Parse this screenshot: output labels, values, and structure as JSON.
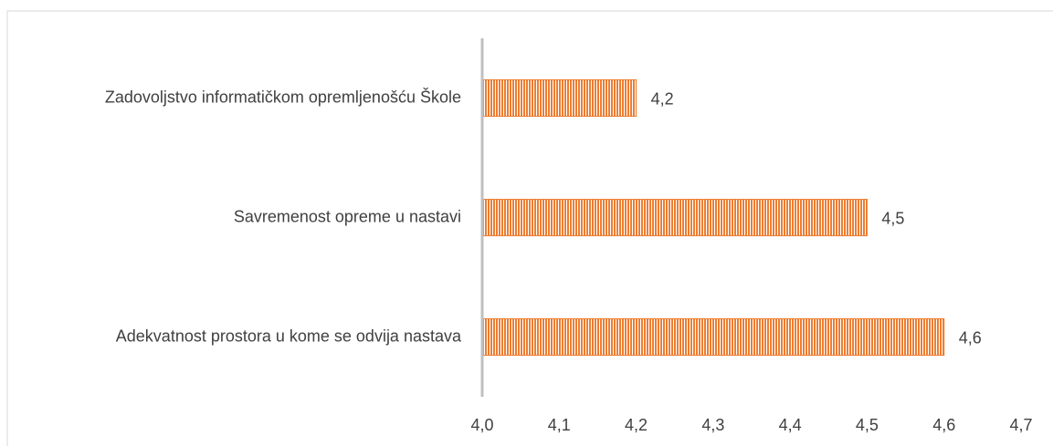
{
  "chart_data": {
    "type": "bar",
    "orientation": "horizontal",
    "categories": [
      "Zadovoljstvo informatičkom opremljenošću Škole",
      "Savremenost opreme u nastavi",
      "Adekvatnost prostora u kome se odvija nastava"
    ],
    "values": [
      4.2,
      4.5,
      4.6
    ],
    "value_labels": [
      "4,2",
      "4,5",
      "4,6"
    ],
    "color": "#ed7d31",
    "xlim": [
      4.0,
      4.7
    ],
    "xticks": [
      {
        "value": 4.0,
        "label": "4,0"
      },
      {
        "value": 4.1,
        "label": "4,1"
      },
      {
        "value": 4.2,
        "label": "4,2"
      },
      {
        "value": 4.3,
        "label": "4,3"
      },
      {
        "value": 4.4,
        "label": "4,4"
      },
      {
        "value": 4.5,
        "label": "4,5"
      },
      {
        "value": 4.6,
        "label": "4,6"
      },
      {
        "value": 4.7,
        "label": "4,7"
      }
    ]
  }
}
